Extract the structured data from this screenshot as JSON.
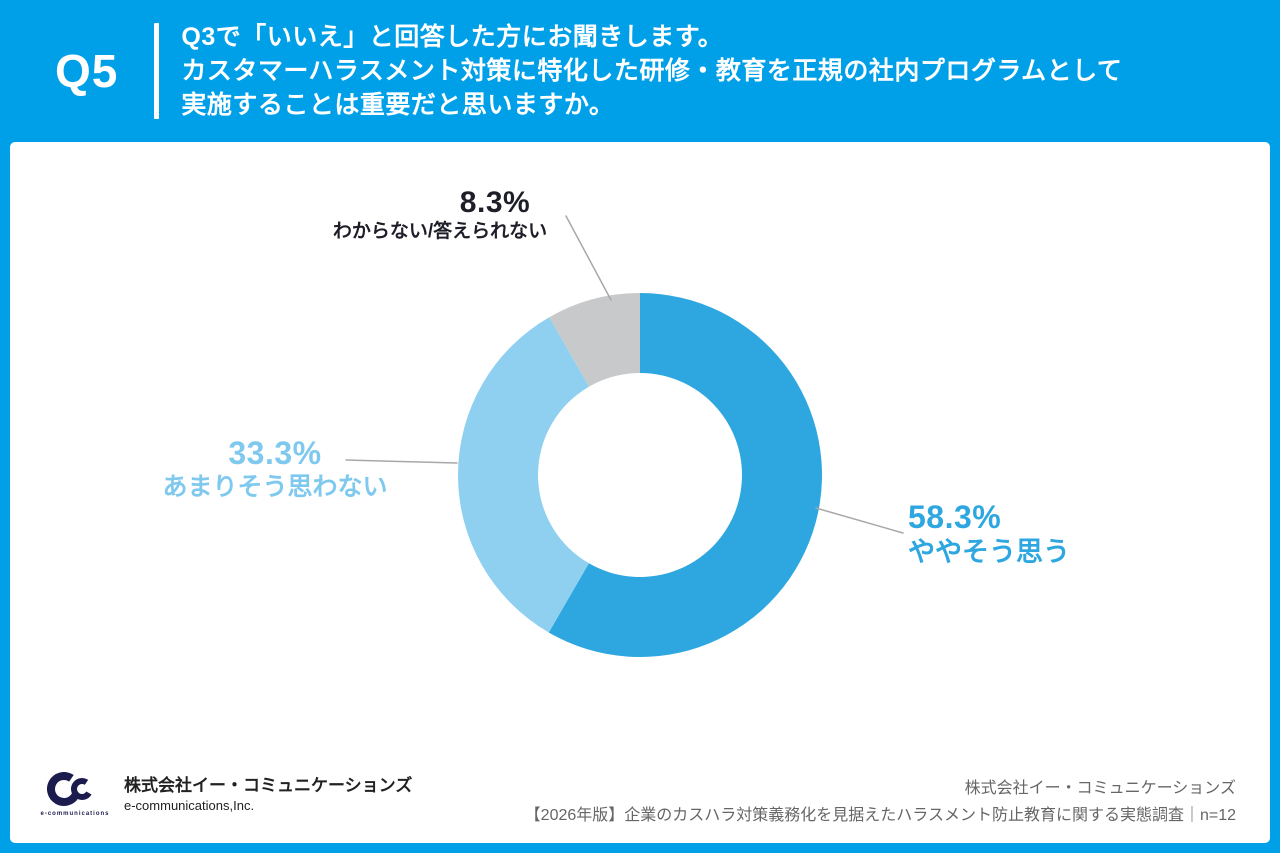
{
  "header": {
    "question_number": "Q5",
    "line1": "Q3で「いいえ」と回答した方にお聞きします。",
    "line2": "カスタマーハラスメント対策に特化した研修・教育を正規の社内プログラムとして",
    "line3": "実施することは重要だと思いますか。"
  },
  "chart_data": {
    "type": "pie",
    "donut": true,
    "start_angle_deg": 0,
    "direction": "clockwise",
    "segments": [
      {
        "label": "ややそう思う",
        "value": 58.3,
        "pct_label": "58.3%",
        "color": "#2EA7E0",
        "text_color": "#2EA7E0"
      },
      {
        "label": "あまりそう思わない",
        "value": 33.3,
        "pct_label": "33.3%",
        "color": "#8FD0F1",
        "text_color": "#7FC9EF"
      },
      {
        "label": "わからない/答えられない",
        "value": 8.3,
        "pct_label": "8.3%",
        "color": "#C8C9CA",
        "text_color": "#1E1E28"
      }
    ]
  },
  "footer": {
    "logo_caption": "e-communications",
    "company_name_jp": "株式会社イー・コミュニケーションズ",
    "company_name_en": "e-communications,Inc.",
    "source_company": "株式会社イー・コミュニケーションズ",
    "source_note": "【2026年版】企業のカスハラ対策義務化を見据えたハラスメント防止教育に関する実態調査｜n=12"
  },
  "colors": {
    "background_blue": "#00A0E9",
    "leader_line": "#A8A8A8",
    "logo_navy": "#1B1B4D"
  }
}
